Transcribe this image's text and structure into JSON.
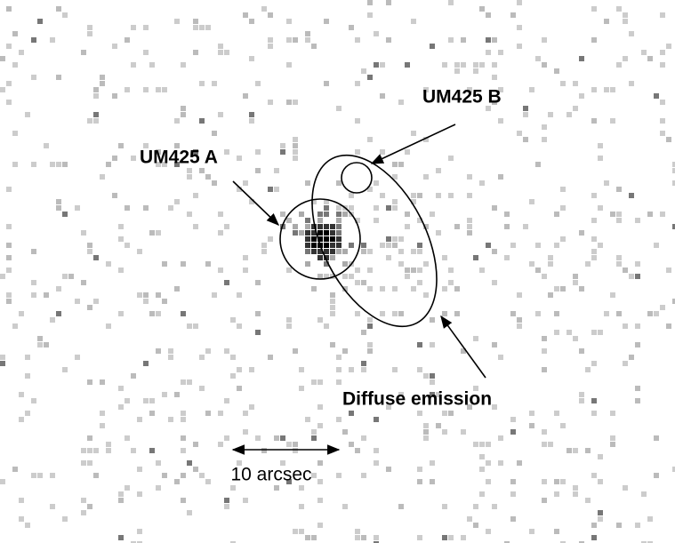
{
  "labels": {
    "source_b": "UM425 B",
    "source_a": "UM425 A",
    "diffuse": "Diffuse emission"
  },
  "scale_bar": {
    "label": "10 arcsec"
  }
}
